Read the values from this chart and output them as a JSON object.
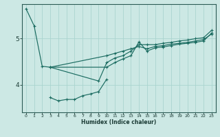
{
  "xlabel": "Humidex (Indice chaleur)",
  "bg_color": "#cce8e4",
  "grid_color": "#aad4cf",
  "line_color": "#1a6b60",
  "xlim": [
    -0.5,
    23.5
  ],
  "ylim": [
    3.4,
    5.75
  ],
  "yticks": [
    4,
    5
  ],
  "xticks": [
    0,
    1,
    2,
    3,
    4,
    5,
    6,
    7,
    8,
    9,
    10,
    11,
    12,
    13,
    14,
    15,
    16,
    17,
    18,
    19,
    20,
    21,
    22,
    23
  ],
  "series": [
    {
      "x": [
        0,
        1,
        2,
        3,
        9,
        10,
        11,
        12,
        13,
        14,
        15,
        16,
        17,
        18,
        19,
        20,
        21,
        22,
        23
      ],
      "y": [
        5.65,
        5.28,
        4.4,
        4.38,
        4.08,
        4.48,
        4.58,
        4.63,
        4.73,
        4.87,
        4.87,
        4.87,
        4.9,
        4.92,
        4.95,
        4.97,
        5.0,
        5.02,
        5.18
      ]
    },
    {
      "x": [
        3,
        4,
        5,
        6,
        7,
        8,
        9,
        10
      ],
      "y": [
        3.72,
        3.65,
        3.68,
        3.68,
        3.76,
        3.8,
        3.85,
        4.12
      ]
    },
    {
      "x": [
        3,
        10,
        11,
        12,
        13,
        14,
        15,
        16,
        17,
        18,
        19,
        20,
        21,
        22,
        23
      ],
      "y": [
        4.38,
        4.38,
        4.48,
        4.56,
        4.63,
        4.93,
        4.73,
        4.8,
        4.82,
        4.85,
        4.88,
        4.9,
        4.92,
        4.95,
        5.12
      ]
    },
    {
      "x": [
        3,
        10,
        11,
        12,
        13,
        14,
        15,
        16,
        17,
        18,
        19,
        20,
        21,
        22,
        23
      ],
      "y": [
        4.38,
        4.63,
        4.68,
        4.73,
        4.78,
        4.83,
        4.78,
        4.83,
        4.85,
        4.88,
        4.9,
        4.92,
        4.95,
        4.98,
        5.1
      ]
    }
  ]
}
